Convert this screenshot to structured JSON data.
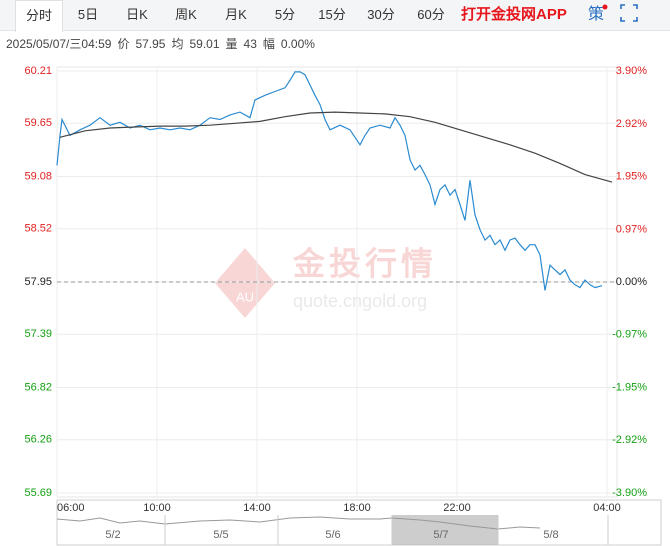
{
  "header": {
    "tabs": [
      "分时",
      "5日",
      "日K",
      "周K",
      "月K",
      "5分",
      "15分",
      "30分",
      "60分"
    ],
    "app_link": "打开金投网APP",
    "strategy": "策"
  },
  "info": [
    "2025/05/07/三04:59",
    "价",
    "57.95",
    "均",
    "59.01",
    "量",
    "43",
    "幅",
    "0.00%"
  ],
  "watermark": {
    "logo": "AU",
    "name": "金投行情",
    "url": "quote.cngold.org"
  },
  "navigator": {
    "labels": [
      "5/2",
      "5/5",
      "5/6",
      "5/7",
      "5/8"
    ]
  },
  "chart_data": {
    "type": "line",
    "grid": true,
    "base_price": 57.95,
    "up_color": "#e02020",
    "down_color": "#14a014",
    "base_color": "#222222",
    "xlim": [
      6,
      28.4
    ],
    "ylim": [
      55.69,
      60.21
    ],
    "y2lim": [
      -3.9,
      3.9
    ],
    "xticks": [
      {
        "value": 6,
        "label": "06:00"
      },
      {
        "value": 10,
        "label": "10:00"
      },
      {
        "value": 14,
        "label": "14:00"
      },
      {
        "value": 18,
        "label": "18:00"
      },
      {
        "value": 22,
        "label": "22:00"
      },
      {
        "value": 28,
        "label": "04:00"
      }
    ],
    "yticks": [
      60.21,
      59.65,
      59.08,
      58.52,
      57.95,
      57.39,
      56.82,
      56.26,
      55.69
    ],
    "y2ticks": [
      {
        "value": 3.9,
        "label": "3.90%"
      },
      {
        "value": 2.92,
        "label": "2.92%"
      },
      {
        "value": 1.95,
        "label": "1.95%"
      },
      {
        "value": 0.97,
        "label": "0.97%"
      },
      {
        "value": 0,
        "label": "0.00%"
      },
      {
        "value": -0.97,
        "label": "-0.97%"
      },
      {
        "value": -1.95,
        "label": "-1.95%"
      },
      {
        "value": -2.92,
        "label": "-2.92%"
      },
      {
        "value": -3.9,
        "label": "-3.90%"
      }
    ],
    "series": [
      {
        "color": "#2a8bd0",
        "x": [
          6,
          6.12,
          6.2,
          6.52,
          6.92,
          7.32,
          7.72,
          8.12,
          8.52,
          8.92,
          9.32,
          9.72,
          10.12,
          10.52,
          10.92,
          11.32,
          11.72,
          12.12,
          12.52,
          12.92,
          13.32,
          13.72,
          13.92,
          14.32,
          14.72,
          15.12,
          15.32,
          15.52,
          15.72,
          15.92,
          16.12,
          16.32,
          16.52,
          16.72,
          16.92,
          17.32,
          17.72,
          18.12,
          18.32,
          18.52,
          18.92,
          19.32,
          19.52,
          19.72,
          19.92,
          20.12,
          20.32,
          20.52,
          20.72,
          20.92,
          21.12,
          21.32,
          21.52,
          21.72,
          21.92,
          22.12,
          22.32,
          22.52,
          22.72,
          22.92,
          23.12,
          23.32,
          23.52,
          23.72,
          23.92,
          24.12,
          24.32,
          24.52,
          24.72,
          24.92,
          25.12,
          25.32,
          25.52,
          25.72,
          25.92,
          26.12,
          26.32,
          26.52,
          26.72,
          26.92,
          27.12,
          27.32,
          27.52,
          27.8
        ],
        "values": [
          59.2,
          59.52,
          59.69,
          59.52,
          59.58,
          59.63,
          59.71,
          59.63,
          59.66,
          59.6,
          59.63,
          59.58,
          59.6,
          59.58,
          59.6,
          59.58,
          59.63,
          59.71,
          59.69,
          59.74,
          59.77,
          59.71,
          59.9,
          59.95,
          59.99,
          60.03,
          60.11,
          60.2,
          60.2,
          60.17,
          60.06,
          59.95,
          59.85,
          59.69,
          59.58,
          59.63,
          59.58,
          59.42,
          59.52,
          59.6,
          59.63,
          59.6,
          59.71,
          59.63,
          59.52,
          59.26,
          59.15,
          59.2,
          59.1,
          58.99,
          58.78,
          58.94,
          58.99,
          58.88,
          58.94,
          58.78,
          58.61,
          59.04,
          58.67,
          58.51,
          58.4,
          58.45,
          58.35,
          58.4,
          58.29,
          58.4,
          58.42,
          58.35,
          58.29,
          58.35,
          58.35,
          58.24,
          57.86,
          58.13,
          58.08,
          58.03,
          58.08,
          57.97,
          57.92,
          57.89,
          57.97,
          57.92,
          57.89,
          57.91
        ]
      },
      {
        "color": "#444444",
        "x": [
          6.12,
          7.12,
          8.12,
          9.12,
          10.12,
          11.12,
          12.12,
          13.12,
          14.12,
          15.12,
          16.12,
          17.12,
          18.12,
          19.12,
          20.12,
          21.12,
          22.12,
          23.12,
          24.12,
          25.12,
          26.12,
          27.12,
          28.2
        ],
        "values": [
          59.5,
          59.57,
          59.6,
          59.61,
          59.62,
          59.62,
          59.63,
          59.65,
          59.67,
          59.72,
          59.76,
          59.77,
          59.76,
          59.75,
          59.72,
          59.66,
          59.58,
          59.5,
          59.42,
          59.33,
          59.22,
          59.1,
          59.02
        ]
      }
    ]
  }
}
